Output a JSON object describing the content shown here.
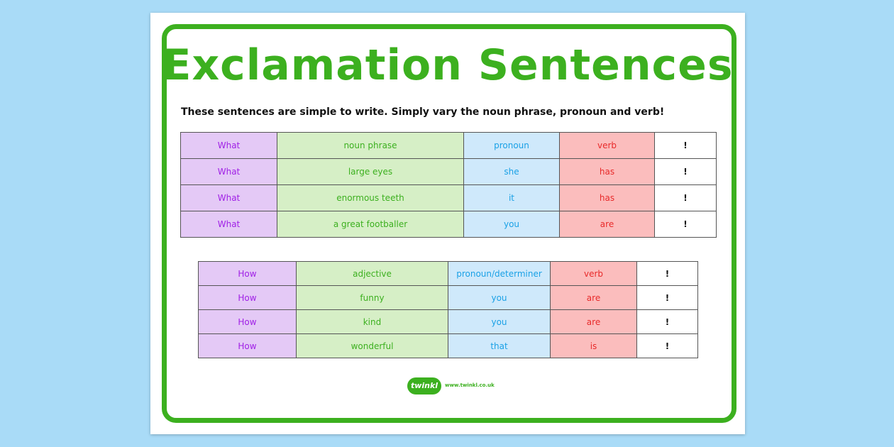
{
  "title": "Exclamation Sentences",
  "intro": "These sentences are simple to write. Simply vary the noun phrase, pronoun and verb!",
  "colors": {
    "background": "#a9dbf7",
    "frame": "#3cb01f",
    "purple": "#a020e6",
    "green": "#3cb01f",
    "blue": "#1aa1e6",
    "red": "#e82a2a"
  },
  "table_what": {
    "rows": [
      [
        "What",
        "noun phrase",
        "pronoun",
        "verb",
        "!"
      ],
      [
        "What",
        "large eyes",
        "she",
        "has",
        "!"
      ],
      [
        "What",
        "enormous teeth",
        "it",
        "has",
        "!"
      ],
      [
        "What",
        "a great footballer",
        "you",
        "are",
        "!"
      ]
    ]
  },
  "table_how": {
    "rows": [
      [
        "How",
        "adjective",
        "pronoun/determiner",
        "verb",
        "!"
      ],
      [
        "How",
        "funny",
        "you",
        "are",
        "!"
      ],
      [
        "How",
        "kind",
        "you",
        "are",
        "!"
      ],
      [
        "How",
        "wonderful",
        "that",
        "is",
        "!"
      ]
    ]
  },
  "logo": {
    "name": "twinkl",
    "url": "www.twinkl.co.uk"
  }
}
